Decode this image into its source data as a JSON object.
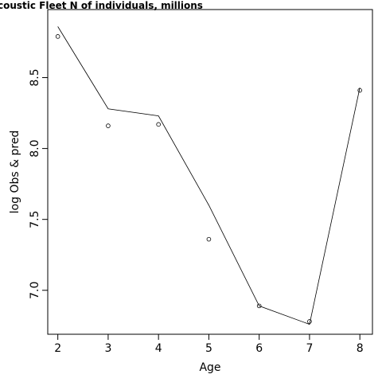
{
  "chart_data": {
    "type": "line",
    "title": "coustic Fleet   N of individuals, millions",
    "xlabel": "Age",
    "ylabel": "log Obs & pred",
    "x": [
      2,
      3,
      4,
      5,
      6,
      7,
      8
    ],
    "xticks": [
      "2",
      "3",
      "4",
      "5",
      "6",
      "7",
      "8"
    ],
    "yticks": [
      "7.0",
      "7.5",
      "8.0",
      "8.5"
    ],
    "ytick_values": [
      7.0,
      7.5,
      8.0,
      8.5
    ],
    "xlim": [
      1.8,
      8.25
    ],
    "ylim": [
      6.69,
      8.98
    ],
    "grid": false,
    "series": [
      {
        "kind": "line",
        "values": [
          8.86,
          8.28,
          8.23,
          7.6,
          6.89,
          6.76,
          8.43
        ]
      },
      {
        "kind": "points",
        "values": [
          8.79,
          8.16,
          8.17,
          7.36,
          6.89,
          6.78,
          8.41
        ]
      }
    ]
  }
}
